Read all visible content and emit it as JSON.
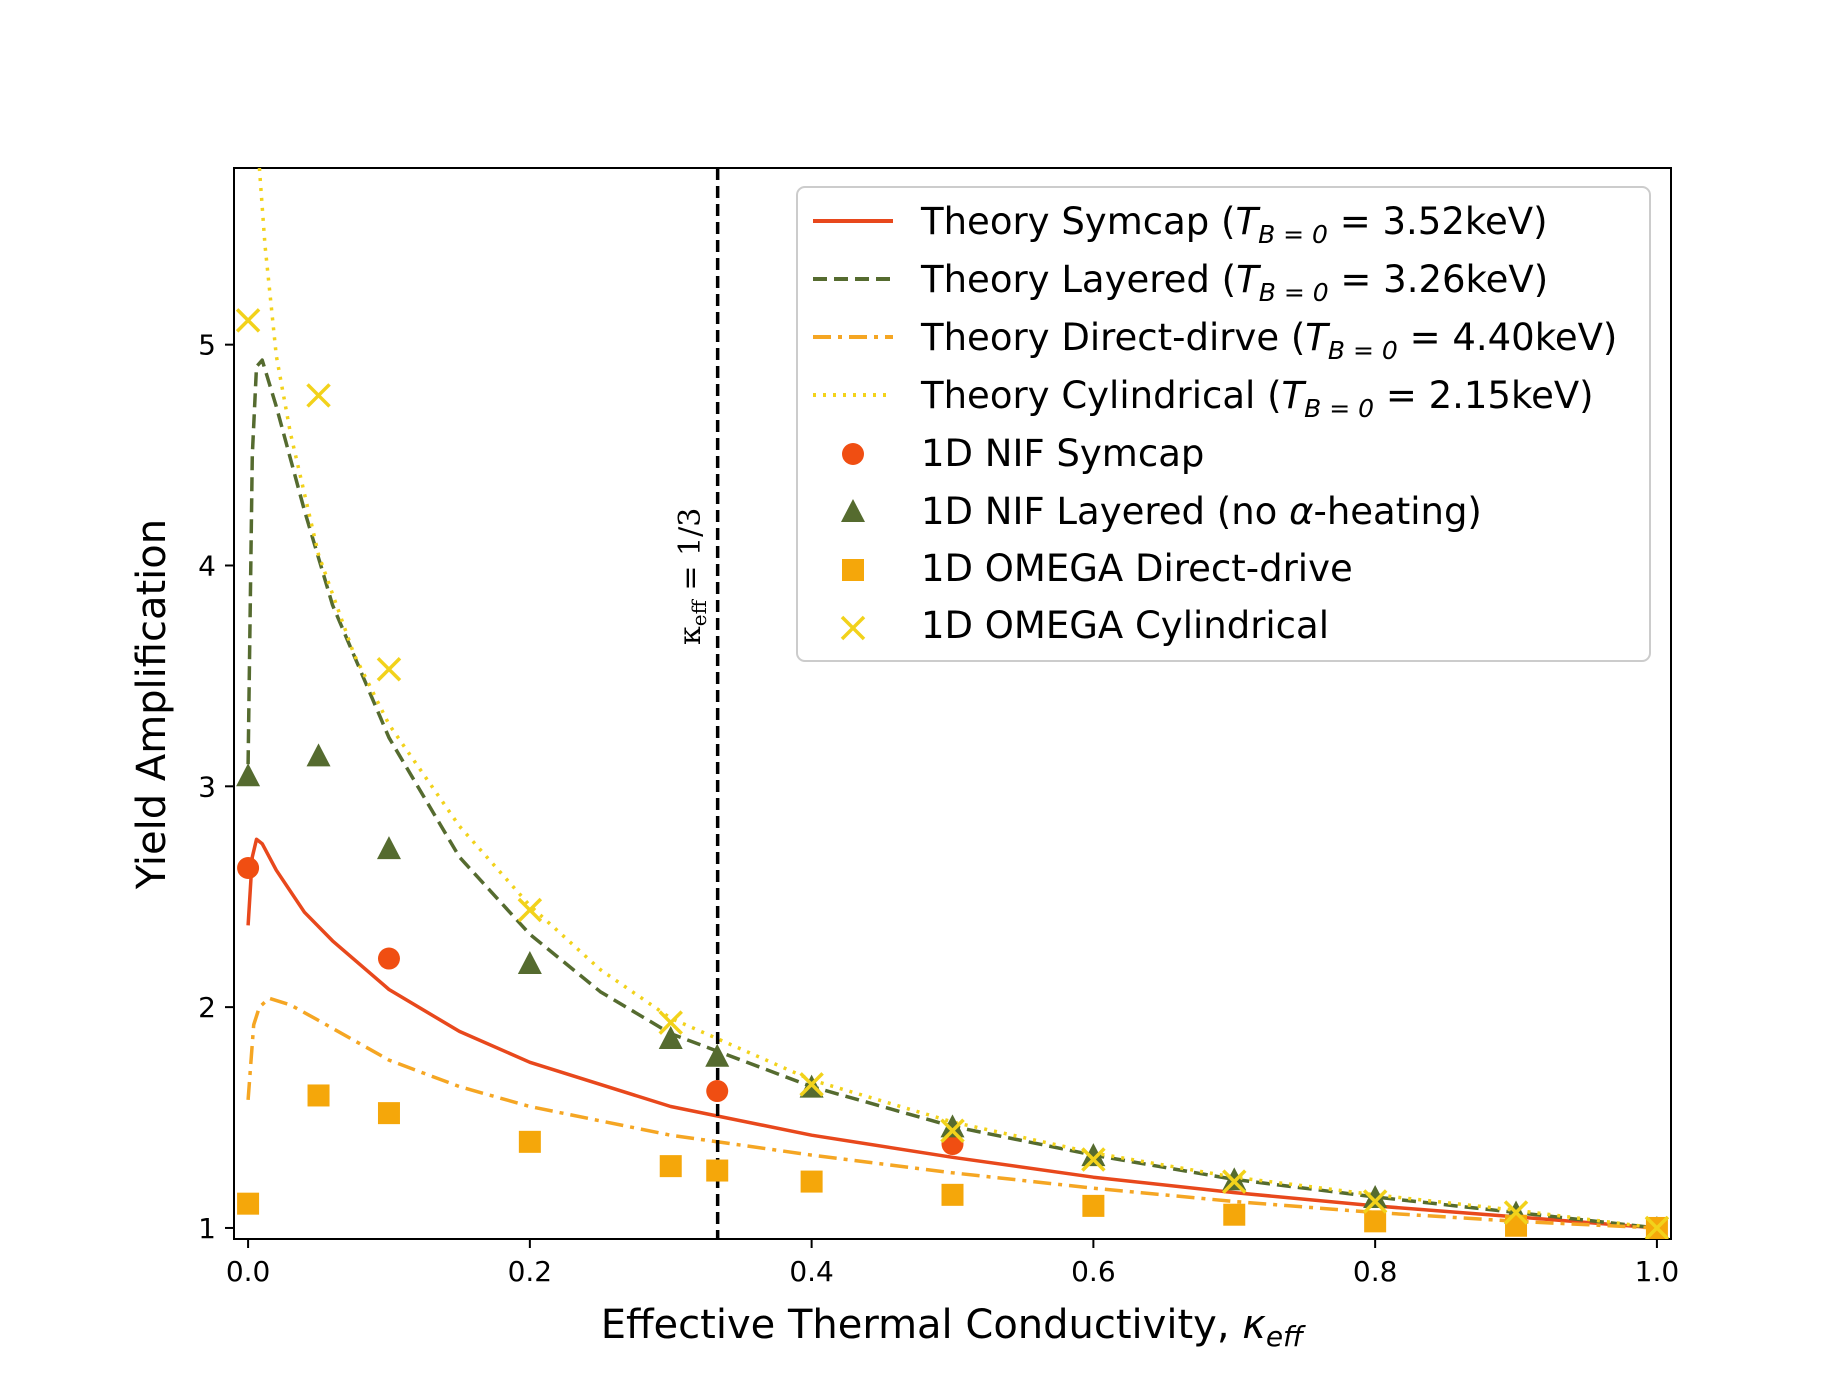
{
  "chart_data": {
    "type": "line",
    "xlabel": "Effective Thermal Conductivity, ",
    "xlabel_symbol": "κ",
    "xlabel_sub": "eff",
    "ylabel": "Yield Amplification",
    "xlim": [
      -0.01,
      1.01
    ],
    "ylim": [
      0.95,
      5.8
    ],
    "x_ticks": [
      0.0,
      0.2,
      0.4,
      0.6,
      0.8,
      1.0
    ],
    "x_tick_labels": [
      "0.0",
      "0.2",
      "0.4",
      "0.6",
      "0.8",
      "1.0"
    ],
    "y_ticks": [
      1,
      2,
      3,
      4,
      5
    ],
    "y_tick_labels": [
      "1",
      "2",
      "3",
      "4",
      "5"
    ],
    "grid": false,
    "legend_position": "top-right",
    "vertical_line": {
      "x": 0.3333,
      "label_symbol": "κ",
      "label_sub": "eff",
      "label_rest": " = 1/3",
      "color": "#000000",
      "style": "dashed"
    },
    "theory_curves": [
      {
        "name": "Theory Symcap (",
        "T_label": "3.52keV",
        "color": "#e8481c",
        "style": "solid",
        "x": [
          0.0,
          0.003,
          0.006,
          0.01,
          0.02,
          0.04,
          0.06,
          0.1,
          0.15,
          0.2,
          0.3,
          0.4,
          0.5,
          0.6,
          0.7,
          0.8,
          0.9,
          1.0
        ],
        "y": [
          2.37,
          2.68,
          2.76,
          2.74,
          2.62,
          2.43,
          2.3,
          2.08,
          1.89,
          1.75,
          1.55,
          1.42,
          1.32,
          1.23,
          1.16,
          1.1,
          1.05,
          1.0
        ]
      },
      {
        "name": "Theory Layered (",
        "T_label": "3.26keV",
        "color": "#556b2f",
        "style": "dashed",
        "x": [
          0.0,
          0.003,
          0.006,
          0.01,
          0.02,
          0.04,
          0.06,
          0.1,
          0.15,
          0.2,
          0.25,
          0.3,
          0.4,
          0.5,
          0.6,
          0.7,
          0.8,
          0.9,
          1.0
        ],
        "y": [
          3.1,
          4.5,
          4.9,
          4.93,
          4.72,
          4.25,
          3.82,
          3.22,
          2.68,
          2.33,
          2.07,
          1.88,
          1.64,
          1.46,
          1.33,
          1.22,
          1.14,
          1.07,
          1.0
        ]
      },
      {
        "name": "Theory Direct-dirve (",
        "T_label": "4.40keV",
        "color": "#f5a623",
        "style": "dashdot",
        "x": [
          0.0,
          0.004,
          0.008,
          0.015,
          0.03,
          0.05,
          0.1,
          0.15,
          0.2,
          0.3,
          0.4,
          0.5,
          0.6,
          0.7,
          0.8,
          0.9,
          1.0
        ],
        "y": [
          1.58,
          1.92,
          2.0,
          2.04,
          2.01,
          1.94,
          1.76,
          1.64,
          1.55,
          1.42,
          1.33,
          1.25,
          1.18,
          1.12,
          1.07,
          1.03,
          1.0
        ]
      },
      {
        "name": "Theory Cylindrical (",
        "T_label": "2.15keV",
        "color": "#f2d21b",
        "style": "dotted",
        "x": [
          0.008,
          0.012,
          0.02,
          0.03,
          0.05,
          0.075,
          0.1,
          0.15,
          0.2,
          0.25,
          0.3,
          0.4,
          0.5,
          0.6,
          0.7,
          0.8,
          0.9,
          1.0
        ],
        "y": [
          5.8,
          5.45,
          4.95,
          4.6,
          4.05,
          3.6,
          3.28,
          2.82,
          2.46,
          2.17,
          1.95,
          1.67,
          1.48,
          1.34,
          1.23,
          1.15,
          1.08,
          1.0
        ]
      }
    ],
    "data_series": [
      {
        "name": "1D NIF Symcap",
        "marker": "circle",
        "color": "#f04e12",
        "x": [
          0.0,
          0.1,
          0.333,
          0.5
        ],
        "y": [
          2.63,
          2.22,
          1.62,
          1.38
        ]
      },
      {
        "name": "1D NIF Layered (no ",
        "name_greek": "α",
        "name_tail": "-heating)",
        "marker": "triangle",
        "color": "#556b2f",
        "x": [
          0.0,
          0.05,
          0.1,
          0.2,
          0.3,
          0.333,
          0.4,
          0.5,
          0.6,
          0.7,
          0.8,
          0.9,
          1.0
        ],
        "y": [
          3.05,
          3.14,
          2.72,
          2.2,
          1.86,
          1.78,
          1.64,
          1.46,
          1.33,
          1.22,
          1.14,
          1.07,
          1.0
        ]
      },
      {
        "name": "1D OMEGA Direct-drive",
        "marker": "square",
        "color": "#f5a70a",
        "x": [
          0.0,
          0.05,
          0.1,
          0.2,
          0.3,
          0.333,
          0.4,
          0.5,
          0.6,
          0.7,
          0.8,
          0.9,
          1.0
        ],
        "y": [
          1.11,
          1.6,
          1.52,
          1.39,
          1.28,
          1.26,
          1.21,
          1.15,
          1.1,
          1.06,
          1.03,
          1.01,
          1.0
        ]
      },
      {
        "name": "1D OMEGA Cylindrical",
        "marker": "x",
        "color": "#f2d21b",
        "x": [
          0.0,
          0.05,
          0.1,
          0.2,
          0.3,
          0.4,
          0.5,
          0.6,
          0.7,
          0.8,
          0.9,
          1.0
        ],
        "y": [
          5.11,
          4.77,
          3.53,
          2.44,
          1.93,
          1.65,
          1.44,
          1.31,
          1.21,
          1.12,
          1.07,
          1.0
        ]
      }
    ],
    "legend_T_prefix": "T",
    "legend_T_sub": "B = 0",
    "legend_close": ")"
  }
}
